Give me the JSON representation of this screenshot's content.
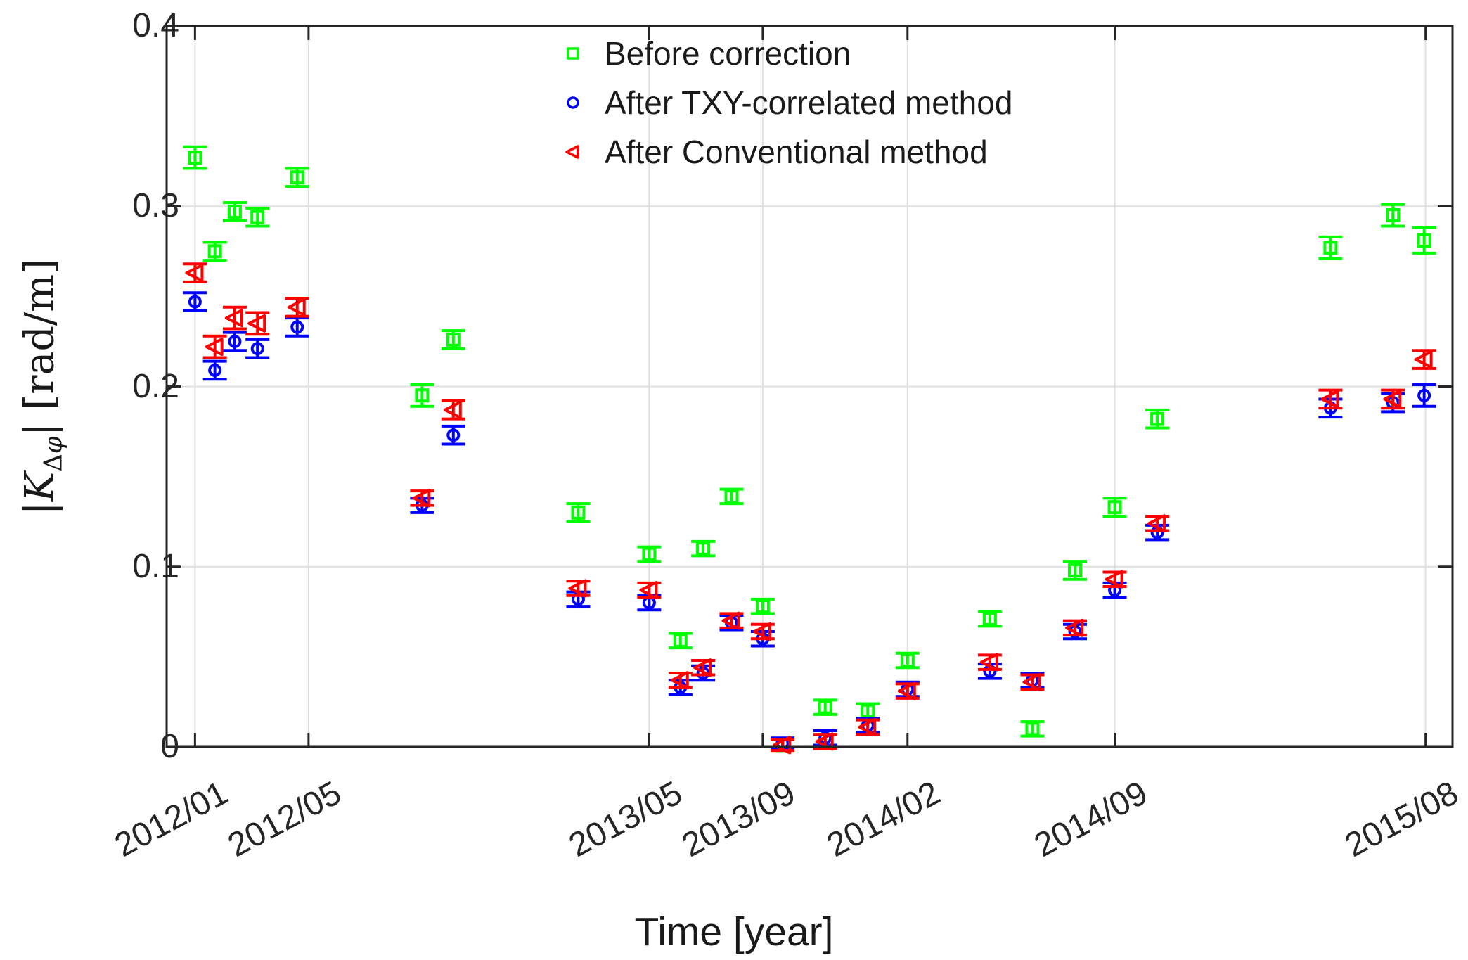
{
  "figure": {
    "background": "#ffffff",
    "axis_color": "#262626",
    "grid_color": "#e0e0e0",
    "text_color": "#1a1a1a"
  },
  "ylabel_parts": {
    "open": "|",
    "K": "K",
    "sub_delta": "Δ",
    "sub_phi": "φ",
    "close": "|",
    "unit": " [rad/m]"
  },
  "chart_data": {
    "type": "scatter",
    "title": "",
    "xlabel": "Time [year]",
    "ylabel": "|K_Δφ| [rad/m]",
    "x_unit": "months since 2012/01",
    "xlim": [
      -1.0,
      44.3
    ],
    "ylim": [
      0,
      0.4
    ],
    "grid": true,
    "legend_position": "inside top, left-of-center, no box",
    "xticks": [
      {
        "t": 0,
        "label": "2012/01"
      },
      {
        "t": 4,
        "label": "2012/05"
      },
      {
        "t": 16,
        "label": "2013/05"
      },
      {
        "t": 20,
        "label": "2013/09"
      },
      {
        "t": 25.1,
        "label": "2014/02"
      },
      {
        "t": 32.4,
        "label": "2014/09"
      },
      {
        "t": 43.35,
        "label": "2015/08"
      }
    ],
    "yticks": [
      {
        "v": 0,
        "label": "0"
      },
      {
        "v": 0.1,
        "label": "0.1"
      },
      {
        "v": 0.2,
        "label": "0.2"
      },
      {
        "v": 0.3,
        "label": "0.3"
      },
      {
        "v": 0.4,
        "label": "0.4"
      }
    ],
    "series": [
      {
        "name": "Before correction",
        "marker": "square",
        "color": "#00ff00",
        "points": [
          {
            "t": 0.0,
            "v": 0.327,
            "e": 0.006
          },
          {
            "t": 0.7,
            "v": 0.275,
            "e": 0.005
          },
          {
            "t": 1.4,
            "v": 0.297,
            "e": 0.005
          },
          {
            "t": 2.2,
            "v": 0.294,
            "e": 0.005
          },
          {
            "t": 3.6,
            "v": 0.316,
            "e": 0.005
          },
          {
            "t": 8.0,
            "v": 0.195,
            "e": 0.006
          },
          {
            "t": 9.1,
            "v": 0.226,
            "e": 0.005
          },
          {
            "t": 13.5,
            "v": 0.13,
            "e": 0.005
          },
          {
            "t": 16.0,
            "v": 0.107,
            "e": 0.004
          },
          {
            "t": 17.1,
            "v": 0.059,
            "e": 0.004
          },
          {
            "t": 17.9,
            "v": 0.11,
            "e": 0.004
          },
          {
            "t": 18.9,
            "v": 0.139,
            "e": 0.004
          },
          {
            "t": 20.0,
            "v": 0.078,
            "e": 0.004
          },
          {
            "t": 20.7,
            "v": 0.001,
            "e": 0.003
          },
          {
            "t": 22.2,
            "v": 0.022,
            "e": 0.004
          },
          {
            "t": 23.7,
            "v": 0.02,
            "e": 0.004
          },
          {
            "t": 25.1,
            "v": 0.048,
            "e": 0.004
          },
          {
            "t": 28.0,
            "v": 0.071,
            "e": 0.004
          },
          {
            "t": 29.5,
            "v": 0.01,
            "e": 0.004
          },
          {
            "t": 31.0,
            "v": 0.098,
            "e": 0.005
          },
          {
            "t": 32.4,
            "v": 0.133,
            "e": 0.005
          },
          {
            "t": 33.9,
            "v": 0.182,
            "e": 0.005
          },
          {
            "t": 40.0,
            "v": 0.277,
            "e": 0.006
          },
          {
            "t": 42.2,
            "v": 0.295,
            "e": 0.006
          },
          {
            "t": 43.3,
            "v": 0.281,
            "e": 0.007
          }
        ]
      },
      {
        "name": "After TXY-correlated method",
        "marker": "circle",
        "color": "#0000ff",
        "points": [
          {
            "t": 0.0,
            "v": 0.247,
            "e": 0.005
          },
          {
            "t": 0.7,
            "v": 0.209,
            "e": 0.005
          },
          {
            "t": 1.4,
            "v": 0.225,
            "e": 0.005
          },
          {
            "t": 2.2,
            "v": 0.221,
            "e": 0.005
          },
          {
            "t": 3.6,
            "v": 0.233,
            "e": 0.005
          },
          {
            "t": 8.0,
            "v": 0.134,
            "e": 0.004
          },
          {
            "t": 9.1,
            "v": 0.173,
            "e": 0.005
          },
          {
            "t": 13.5,
            "v": 0.082,
            "e": 0.004
          },
          {
            "t": 16.0,
            "v": 0.08,
            "e": 0.004
          },
          {
            "t": 17.1,
            "v": 0.033,
            "e": 0.004
          },
          {
            "t": 17.9,
            "v": 0.041,
            "e": 0.004
          },
          {
            "t": 18.9,
            "v": 0.069,
            "e": 0.004
          },
          {
            "t": 20.0,
            "v": 0.06,
            "e": 0.004
          },
          {
            "t": 20.7,
            "v": 0.002,
            "e": 0.003
          },
          {
            "t": 22.2,
            "v": 0.005,
            "e": 0.004
          },
          {
            "t": 23.7,
            "v": 0.012,
            "e": 0.004
          },
          {
            "t": 25.1,
            "v": 0.032,
            "e": 0.004
          },
          {
            "t": 28.0,
            "v": 0.042,
            "e": 0.004
          },
          {
            "t": 29.5,
            "v": 0.037,
            "e": 0.004
          },
          {
            "t": 31.0,
            "v": 0.064,
            "e": 0.004
          },
          {
            "t": 32.4,
            "v": 0.087,
            "e": 0.004
          },
          {
            "t": 33.9,
            "v": 0.119,
            "e": 0.004
          },
          {
            "t": 40.0,
            "v": 0.188,
            "e": 0.005
          },
          {
            "t": 42.2,
            "v": 0.191,
            "e": 0.005
          },
          {
            "t": 43.3,
            "v": 0.195,
            "e": 0.006
          }
        ]
      },
      {
        "name": "After Conventional method",
        "marker": "triangle-left",
        "color": "#ff0000",
        "points": [
          {
            "t": 0.0,
            "v": 0.263,
            "e": 0.005
          },
          {
            "t": 0.7,
            "v": 0.222,
            "e": 0.006
          },
          {
            "t": 1.4,
            "v": 0.238,
            "e": 0.006
          },
          {
            "t": 2.2,
            "v": 0.235,
            "e": 0.006
          },
          {
            "t": 3.6,
            "v": 0.244,
            "e": 0.005
          },
          {
            "t": 8.0,
            "v": 0.138,
            "e": 0.004
          },
          {
            "t": 9.1,
            "v": 0.187,
            "e": 0.005
          },
          {
            "t": 13.5,
            "v": 0.088,
            "e": 0.004
          },
          {
            "t": 16.0,
            "v": 0.087,
            "e": 0.004
          },
          {
            "t": 17.1,
            "v": 0.037,
            "e": 0.004
          },
          {
            "t": 17.9,
            "v": 0.044,
            "e": 0.004
          },
          {
            "t": 18.9,
            "v": 0.07,
            "e": 0.004
          },
          {
            "t": 20.0,
            "v": 0.064,
            "e": 0.004
          },
          {
            "t": 20.7,
            "v": 0.001,
            "e": 0.003
          },
          {
            "t": 22.2,
            "v": 0.003,
            "e": 0.004
          },
          {
            "t": 23.7,
            "v": 0.011,
            "e": 0.004
          },
          {
            "t": 25.1,
            "v": 0.031,
            "e": 0.004
          },
          {
            "t": 28.0,
            "v": 0.047,
            "e": 0.004
          },
          {
            "t": 29.5,
            "v": 0.036,
            "e": 0.004
          },
          {
            "t": 31.0,
            "v": 0.066,
            "e": 0.004
          },
          {
            "t": 32.4,
            "v": 0.093,
            "e": 0.004
          },
          {
            "t": 33.9,
            "v": 0.124,
            "e": 0.004
          },
          {
            "t": 40.0,
            "v": 0.193,
            "e": 0.005
          },
          {
            "t": 42.2,
            "v": 0.193,
            "e": 0.005
          },
          {
            "t": 43.3,
            "v": 0.215,
            "e": 0.005
          }
        ]
      }
    ]
  }
}
